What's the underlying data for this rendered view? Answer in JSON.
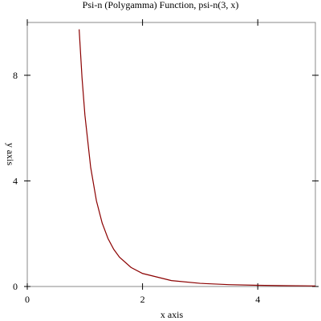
{
  "chart_data": {
    "type": "line",
    "title": "Psi-n (Polygamma) Function, psi-n(3, x)",
    "x_label": "x axis",
    "y_label": "y axis",
    "x": [
      0.9,
      0.95,
      1.0,
      1.1,
      1.2,
      1.3,
      1.4,
      1.5,
      1.6,
      1.8,
      2.0,
      2.5,
      3.0,
      3.5,
      4.0,
      4.5,
      5.0
    ],
    "series": [
      {
        "name": "psi-n(3, x)",
        "color": "#8b0000",
        "values": [
          9.739,
          7.907,
          6.494,
          4.513,
          3.245,
          2.401,
          1.82,
          1.409,
          1.111,
          0.722,
          0.494,
          0.224,
          0.119,
          0.0702,
          0.0448,
          0.0303,
          0.0214
        ]
      }
    ],
    "xlim": [
      0,
      5
    ],
    "ylim": [
      0,
      10
    ],
    "xticks": [
      0,
      2,
      4
    ],
    "yticks": [
      0,
      4,
      8
    ]
  }
}
